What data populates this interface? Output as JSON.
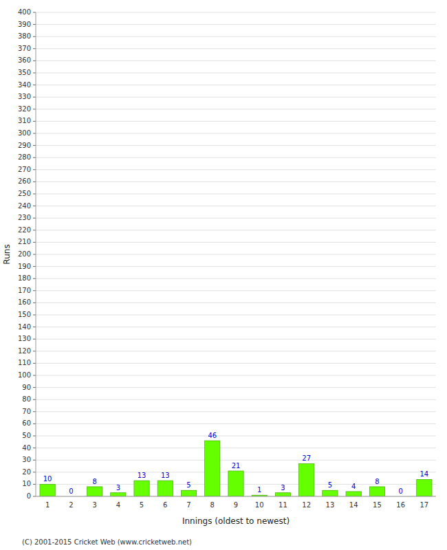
{
  "chart_data": {
    "type": "bar",
    "xlabel": "Innings (oldest to newest)",
    "ylabel": "Runs",
    "categories": [
      "1",
      "2",
      "3",
      "4",
      "5",
      "6",
      "7",
      "8",
      "9",
      "10",
      "11",
      "12",
      "13",
      "14",
      "15",
      "16",
      "17"
    ],
    "values": [
      10,
      0,
      8,
      3,
      13,
      13,
      5,
      46,
      21,
      1,
      3,
      27,
      5,
      4,
      8,
      0,
      14
    ],
    "color": "#66ff00",
    "ylim": [
      0,
      400
    ],
    "yticks": [
      0,
      10,
      20,
      30,
      40,
      50,
      60,
      70,
      80,
      90,
      100,
      110,
      120,
      130,
      140,
      150,
      160,
      170,
      180,
      190,
      200,
      210,
      220,
      230,
      240,
      250,
      260,
      270,
      280,
      290,
      300,
      310,
      320,
      330,
      340,
      350,
      360,
      370,
      380,
      390,
      400
    ],
    "grid": true,
    "data_labels": true,
    "annotations": [
      "(C) 2001-2015 Cricket Web (www.cricketweb.net)"
    ]
  }
}
